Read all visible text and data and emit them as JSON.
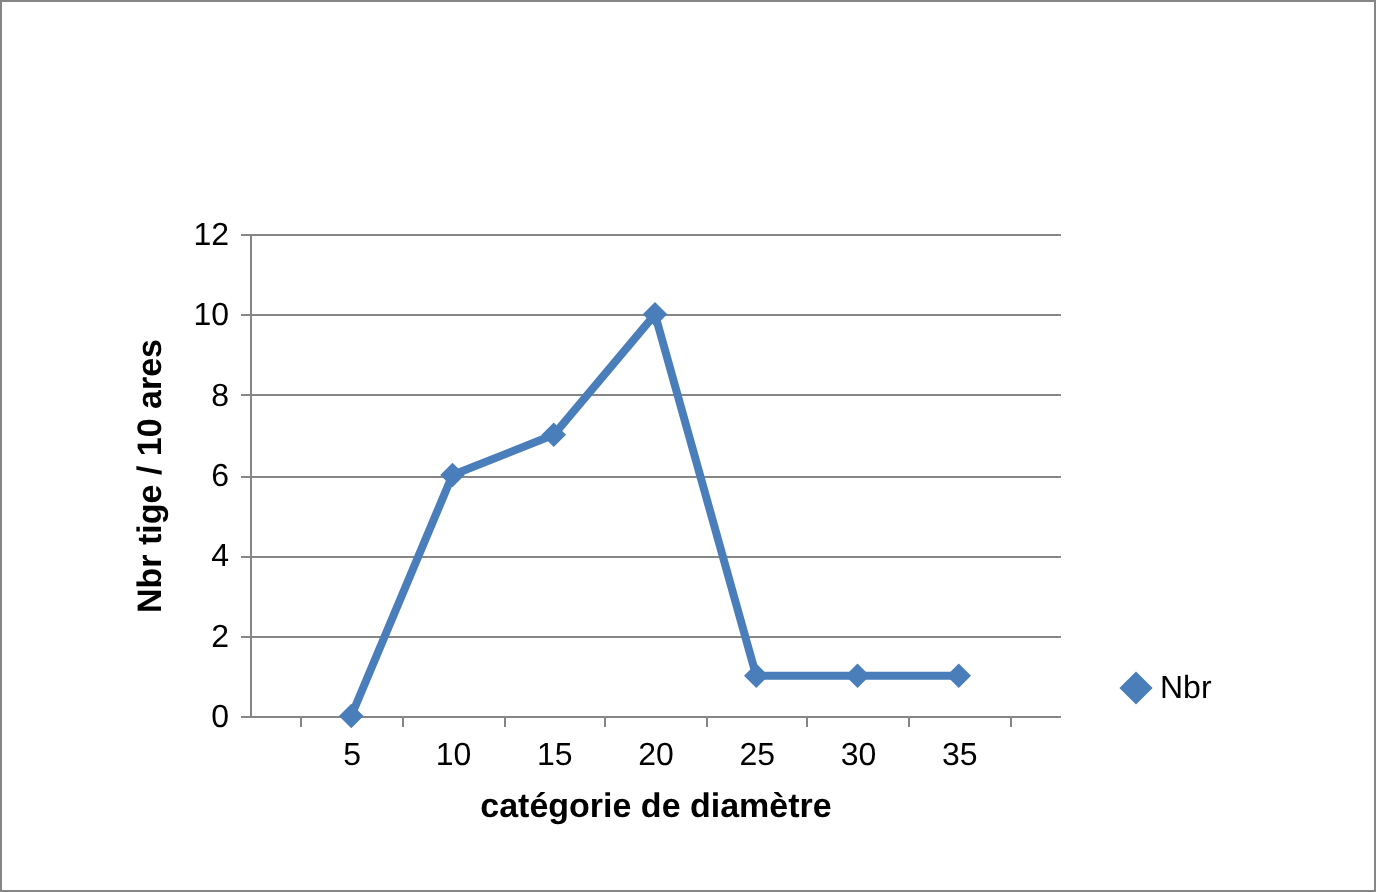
{
  "chart_data": {
    "type": "line",
    "xlabel": "catégorie de diamètre",
    "ylabel": "Nbr tige / 10 ares",
    "categories": [
      "5",
      "10",
      "15",
      "20",
      "25",
      "30",
      "35"
    ],
    "series": [
      {
        "name": "Nbr",
        "color": "#4a7ebb",
        "values": [
          0,
          6,
          7,
          10,
          1,
          1,
          1
        ]
      }
    ],
    "ylim": [
      0,
      12
    ],
    "yticks": [
      0,
      2,
      4,
      6,
      8,
      10,
      12
    ],
    "grid": "y",
    "legend": "right",
    "marker": "diamond",
    "line_style": "solid"
  }
}
